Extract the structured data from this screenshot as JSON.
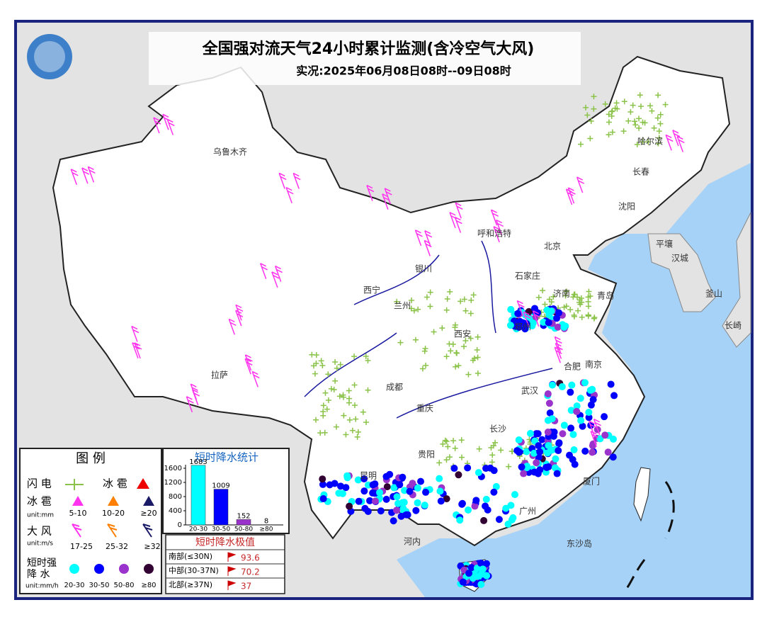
{
  "header": {
    "title": "全国强对流天气24小时累计监测(含冷空气大风)",
    "subtitle": "实况:2025年06月08日08时--09日08时"
  },
  "places": [
    "乌鲁木齐",
    "哈尔滨",
    "长春",
    "沈阳",
    "呼和浩特",
    "北京",
    "石家庄",
    "银川",
    "西宁",
    "兰州",
    "西安",
    "郑州",
    "济南",
    "青岛",
    "合肥",
    "南京",
    "武汉",
    "成都",
    "重庆",
    "长沙",
    "贵阳",
    "昆明",
    "广州",
    "厦门",
    "拉萨",
    "平壤",
    "汉城",
    "釜山",
    "长崎",
    "河内",
    "东沙岛"
  ],
  "legend": {
    "title": "图 例",
    "lightning": "闪 电",
    "hail_marker": "冰 雹",
    "hail": {
      "label": "冰 雹",
      "unit": "unit:mm",
      "classes": [
        "5-10",
        "10-20",
        "≥20"
      ]
    },
    "wind": {
      "label": "大 风",
      "unit": "unit:m/s",
      "classes": [
        "17-25",
        "25-32",
        "≥32"
      ]
    },
    "rain": {
      "label": [
        "短时强",
        "降 水"
      ],
      "unit": "unit:mm/h",
      "classes": [
        "20-30",
        "30-50",
        "50-80",
        "≥80"
      ]
    }
  },
  "chart_data": {
    "type": "bar",
    "title": "短时降水统计",
    "categories": [
      "20-30",
      "30-50",
      "50-80",
      "≥80"
    ],
    "values": [
      1683,
      1009,
      152,
      8
    ],
    "colors": [
      "#00ffff",
      "#0000ff",
      "#9933cc",
      "#330033"
    ],
    "ylim": [
      0,
      1700
    ],
    "yticks": [
      0,
      400,
      800,
      1200,
      1600
    ]
  },
  "extremes": {
    "title": "短时降水极值",
    "rows": [
      {
        "region": "南部(≤30N)",
        "value": 93.6
      },
      {
        "region": "中部(30-37N)",
        "value": 70.2
      },
      {
        "region": "北部(≥37N)",
        "value": 37
      }
    ]
  }
}
